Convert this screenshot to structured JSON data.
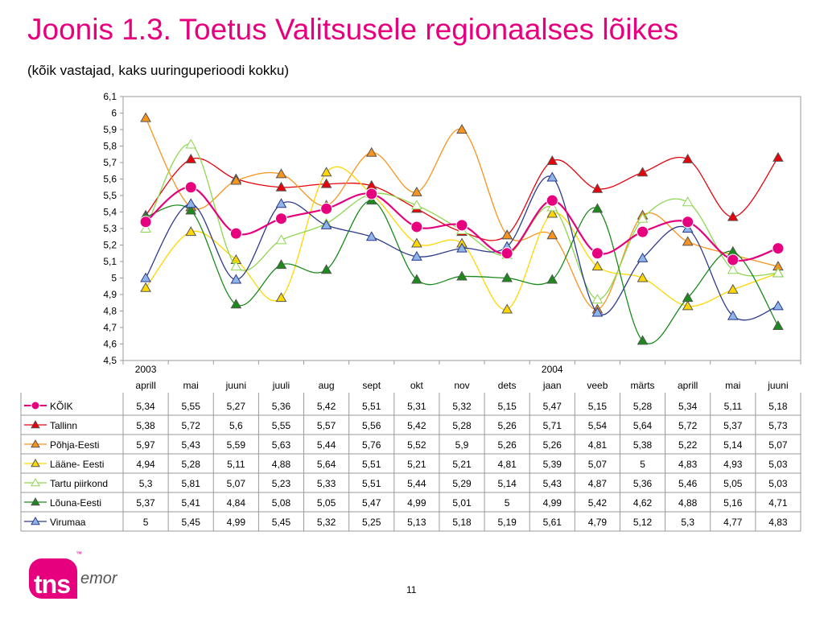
{
  "title": "Joonis 1.3. Toetus Valitsusele regionaalses lõikes",
  "subtitle": "(kõik vastajad, kaks uuringuperioodi kokku)",
  "page_number": "11",
  "logo": {
    "brand": "tns",
    "sub": "emor",
    "tm": "™"
  },
  "chart_data": {
    "type": "line",
    "title": "Joonis 1.3. Toetus Valitsusele regionaalses lõikes",
    "subtitle": "(kõik vastajad, kaks uuringuperioodi kokku)",
    "xlabel": "",
    "ylabel": "",
    "ylim": [
      4.5,
      6.1
    ],
    "ytick_step": 0.1,
    "grid": false,
    "legend": "table-below",
    "year_labels": [
      {
        "index": 0,
        "label": "2003"
      },
      {
        "index": 9,
        "label": "2004"
      }
    ],
    "categories": [
      "aprill",
      "mai",
      "juuni",
      "juuli",
      "aug",
      "sept",
      "okt",
      "nov",
      "dets",
      "jaan",
      "veeb",
      "märts",
      "aprill",
      "mai",
      "juuni"
    ],
    "series": [
      {
        "name": "KÕIK",
        "color": "#e6007e",
        "marker": "circle",
        "values": [
          5.34,
          5.55,
          5.27,
          5.36,
          5.42,
          5.51,
          5.31,
          5.32,
          5.15,
          5.47,
          5.15,
          5.28,
          5.34,
          5.11,
          5.18
        ]
      },
      {
        "name": "Tallinn",
        "color": "#e8000b",
        "marker": "triangle",
        "values": [
          5.38,
          5.72,
          5.6,
          5.55,
          5.57,
          5.56,
          5.42,
          5.28,
          5.26,
          5.71,
          5.54,
          5.64,
          5.72,
          5.37,
          5.73
        ]
      },
      {
        "name": "Põhja-Eesti",
        "color": "#f7941d",
        "marker": "triangle",
        "values": [
          5.97,
          5.43,
          5.59,
          5.63,
          5.44,
          5.76,
          5.52,
          5.9,
          5.26,
          5.26,
          4.81,
          5.38,
          5.22,
          5.14,
          5.07
        ]
      },
      {
        "name": "Lääne- Eesti",
        "color": "#ffd700",
        "marker": "triangle",
        "values": [
          4.94,
          5.28,
          5.11,
          4.88,
          5.64,
          5.51,
          5.21,
          5.21,
          4.81,
          5.39,
          5.07,
          5,
          4.83,
          4.93,
          5.03
        ]
      },
      {
        "name": "Tartu piirkond",
        "color": "#8ed64f",
        "marker": "triangle-open",
        "values": [
          5.3,
          5.81,
          5.07,
          5.23,
          5.33,
          5.51,
          5.44,
          5.29,
          5.14,
          5.43,
          4.87,
          5.36,
          5.46,
          5.05,
          5.03
        ]
      },
      {
        "name": "Lõuna-Eesti",
        "color": "#1b8a1b",
        "marker": "triangle",
        "values": [
          5.37,
          5.41,
          4.84,
          5.08,
          5.05,
          5.47,
          4.99,
          5.01,
          5,
          4.99,
          5.42,
          4.62,
          4.88,
          5.16,
          4.71
        ]
      },
      {
        "name": "Virumaa",
        "color": "#2e3a8c",
        "fill": "#8fb4e8",
        "marker": "triangle",
        "values": [
          5,
          5.45,
          4.99,
          5.45,
          5.32,
          5.25,
          5.13,
          5.18,
          5.19,
          5.61,
          4.79,
          5.12,
          5.3,
          4.77,
          4.83
        ]
      }
    ],
    "table_values": [
      [
        "5,34",
        "5,55",
        "5,27",
        "5,36",
        "5,42",
        "5,51",
        "5,31",
        "5,32",
        "5,15",
        "5,47",
        "5,15",
        "5,28",
        "5,34",
        "5,11",
        "5,18"
      ],
      [
        "5,38",
        "5,72",
        "5,6",
        "5,55",
        "5,57",
        "5,56",
        "5,42",
        "5,28",
        "5,26",
        "5,71",
        "5,54",
        "5,64",
        "5,72",
        "5,37",
        "5,73"
      ],
      [
        "5,97",
        "5,43",
        "5,59",
        "5,63",
        "5,44",
        "5,76",
        "5,52",
        "5,9",
        "5,26",
        "5,26",
        "4,81",
        "5,38",
        "5,22",
        "5,14",
        "5,07"
      ],
      [
        "4,94",
        "5,28",
        "5,11",
        "4,88",
        "5,64",
        "5,51",
        "5,21",
        "5,21",
        "4,81",
        "5,39",
        "5,07",
        "5",
        "4,83",
        "4,93",
        "5,03"
      ],
      [
        "5,3",
        "5,81",
        "5,07",
        "5,23",
        "5,33",
        "5,51",
        "5,44",
        "5,29",
        "5,14",
        "5,43",
        "4,87",
        "5,36",
        "5,46",
        "5,05",
        "5,03"
      ],
      [
        "5,37",
        "5,41",
        "4,84",
        "5,08",
        "5,05",
        "5,47",
        "4,99",
        "5,01",
        "5",
        "4,99",
        "5,42",
        "4,62",
        "4,88",
        "5,16",
        "4,71"
      ],
      [
        "5",
        "5,45",
        "4,99",
        "5,45",
        "5,32",
        "5,25",
        "5,13",
        "5,18",
        "5,19",
        "5,61",
        "4,79",
        "5,12",
        "5,3",
        "4,77",
        "4,83"
      ]
    ],
    "ytick_labels": [
      "4,5",
      "4,6",
      "4,7",
      "4,8",
      "4,9",
      "5",
      "5,1",
      "5,2",
      "5,3",
      "5,4",
      "5,5",
      "5,6",
      "5,7",
      "5,8",
      "5,9",
      "6",
      "6,1"
    ]
  }
}
